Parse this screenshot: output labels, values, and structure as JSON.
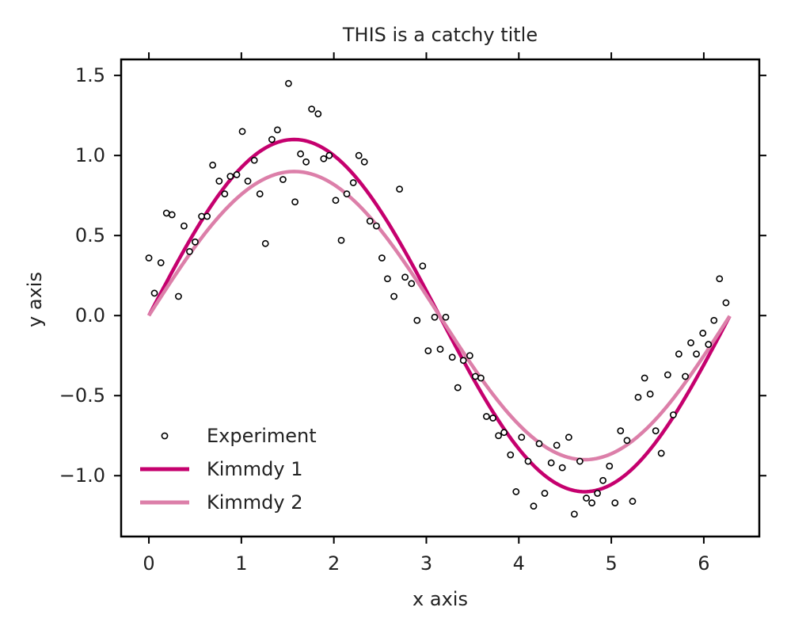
{
  "chart_data": {
    "type": "line",
    "title": "THIS is a catchy title",
    "xlabel": "x axis",
    "ylabel": "y axis",
    "xlim": [
      -0.3,
      6.6
    ],
    "ylim": [
      -1.38,
      1.6
    ],
    "xticks": [
      0,
      1,
      2,
      3,
      4,
      5,
      6
    ],
    "xtick_labels": [
      "0",
      "1",
      "2",
      "3",
      "4",
      "5",
      "6"
    ],
    "yticks": [
      -1.0,
      -0.5,
      0.0,
      0.5,
      1.0,
      1.5
    ],
    "ytick_labels": [
      "−1.0",
      "−0.5",
      "0.0",
      "0.5",
      "1.0",
      "1.5"
    ],
    "grid": false,
    "legend_position": "lower-left",
    "series": [
      {
        "name": "Experiment",
        "kind": "scatter",
        "marker": "open-circle",
        "color": "#000000",
        "x": [
          0.0,
          0.06,
          0.13,
          0.19,
          0.25,
          0.32,
          0.38,
          0.44,
          0.5,
          0.57,
          0.63,
          0.69,
          0.76,
          0.82,
          0.88,
          0.95,
          1.01,
          1.07,
          1.14,
          1.2,
          1.26,
          1.33,
          1.39,
          1.45,
          1.51,
          1.58,
          1.64,
          1.7,
          1.76,
          1.83,
          1.89,
          1.95,
          2.02,
          2.08,
          2.14,
          2.21,
          2.27,
          2.33,
          2.39,
          2.46,
          2.52,
          2.58,
          2.65,
          2.71,
          2.77,
          2.84,
          2.9,
          2.96,
          3.02,
          3.09,
          3.15,
          3.21,
          3.28,
          3.34,
          3.4,
          3.47,
          3.53,
          3.59,
          3.65,
          3.72,
          3.78,
          3.84,
          3.91,
          3.97,
          4.03,
          4.1,
          4.16,
          4.22,
          4.28,
          4.35,
          4.41,
          4.47,
          4.54,
          4.6,
          4.66,
          4.73,
          4.79,
          4.85,
          4.91,
          4.98,
          5.04,
          5.1,
          5.17,
          5.23,
          5.29,
          5.36,
          5.42,
          5.48,
          5.54,
          5.61,
          5.67,
          5.73,
          5.8,
          5.86,
          5.92,
          5.99,
          6.05,
          6.11,
          6.17,
          6.24
        ],
        "y": [
          0.36,
          0.14,
          0.33,
          0.64,
          0.63,
          0.12,
          0.56,
          0.4,
          0.46,
          0.62,
          0.62,
          0.94,
          0.84,
          0.76,
          0.87,
          0.88,
          1.15,
          0.84,
          0.97,
          0.76,
          0.45,
          1.1,
          1.16,
          0.85,
          1.45,
          0.71,
          1.01,
          0.96,
          1.29,
          1.26,
          0.98,
          1.0,
          0.72,
          0.47,
          0.76,
          0.83,
          1.0,
          0.96,
          0.59,
          0.56,
          0.36,
          0.23,
          0.12,
          0.79,
          0.24,
          0.2,
          -0.03,
          0.31,
          -0.22,
          -0.01,
          -0.21,
          -0.01,
          -0.26,
          -0.45,
          -0.28,
          -0.25,
          -0.38,
          -0.39,
          -0.63,
          -0.64,
          -0.75,
          -0.73,
          -0.87,
          -1.1,
          -0.76,
          -0.91,
          -1.19,
          -0.8,
          -1.11,
          -0.92,
          -0.81,
          -0.95,
          -0.76,
          -1.24,
          -0.91,
          -1.14,
          -1.17,
          -1.11,
          -1.03,
          -0.94,
          -1.17,
          -0.72,
          -0.78,
          -1.16,
          -0.51,
          -0.39,
          -0.49,
          -0.72,
          -0.86,
          -0.37,
          -0.62,
          -0.24,
          -0.38,
          -0.17,
          -0.24,
          -0.11,
          -0.18,
          -0.03,
          0.23,
          0.08
        ]
      },
      {
        "name": "Kimmdy 1",
        "kind": "line",
        "color": "#c5006e",
        "function": "1.1*sin(x)",
        "x": [
          0.0,
          0.25,
          0.5,
          0.75,
          1.0,
          1.25,
          1.5,
          1.75,
          2.0,
          2.25,
          2.5,
          2.75,
          3.0,
          3.25,
          3.5,
          3.75,
          4.0,
          4.25,
          4.5,
          4.75,
          5.0,
          5.25,
          5.5,
          5.75,
          6.0,
          6.28
        ],
        "y": [
          0.0,
          0.272,
          0.527,
          0.75,
          0.926,
          1.044,
          1.097,
          1.081,
          1.0,
          0.855,
          0.658,
          0.421,
          0.155,
          -0.12,
          -0.386,
          -0.629,
          -0.832,
          -0.983,
          -1.075,
          -1.1,
          -1.055,
          -0.944,
          -0.774,
          -0.56,
          -0.307,
          0.0
        ]
      },
      {
        "name": "Kimmdy 2",
        "kind": "line",
        "color": "#dc7fa9",
        "function": "0.9*sin(x)",
        "x": [
          0.0,
          0.25,
          0.5,
          0.75,
          1.0,
          1.25,
          1.5,
          1.75,
          2.0,
          2.25,
          2.5,
          2.75,
          3.0,
          3.25,
          3.5,
          3.75,
          4.0,
          4.25,
          4.5,
          4.75,
          5.0,
          5.25,
          5.5,
          5.75,
          6.0,
          6.28
        ],
        "y": [
          0.0,
          0.223,
          0.431,
          0.613,
          0.757,
          0.854,
          0.898,
          0.885,
          0.818,
          0.699,
          0.539,
          0.344,
          0.127,
          -0.098,
          -0.316,
          -0.515,
          -0.681,
          -0.805,
          -0.88,
          -0.9,
          -0.863,
          -0.772,
          -0.634,
          -0.458,
          -0.251,
          0.0
        ]
      }
    ]
  }
}
